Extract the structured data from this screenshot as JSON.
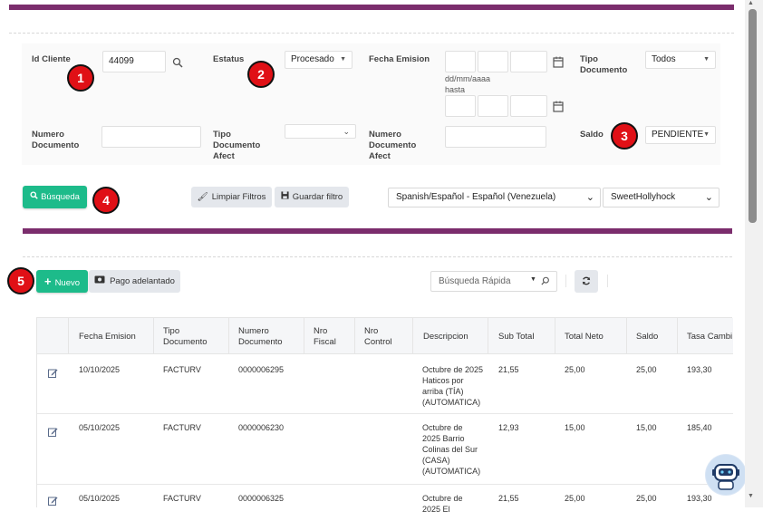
{
  "filters": {
    "id_cliente": {
      "label": "Id Cliente",
      "value": "44099"
    },
    "estatus": {
      "label": "Estatus",
      "value": "Procesado"
    },
    "fecha_emision": {
      "label": "Fecha Emision",
      "format_hint": "dd/mm/aaaa",
      "hasta": "hasta"
    },
    "tipo_documento": {
      "label": "Tipo Documento",
      "value": "Todos"
    },
    "numero_documento": {
      "label": "Numero Documento",
      "value": ""
    },
    "tipo_documento_afect": {
      "label": "Tipo Documento Afect",
      "value": ""
    },
    "numero_documento_afect": {
      "label": "Numero Documento Afect",
      "value": ""
    },
    "saldo": {
      "label": "Saldo",
      "value": "PENDIENTE"
    }
  },
  "badges": [
    "1",
    "2",
    "3",
    "4",
    "5"
  ],
  "actions": {
    "busqueda": "Búsqueda",
    "limpiar": "Limpiar Filtros",
    "guardar": "Guardar filtro",
    "language": "Spanish/Español - Español (Venezuela)",
    "theme": "SweetHollyhock"
  },
  "toolbar": {
    "nuevo": "Nuevo",
    "pago": "Pago adelantado",
    "quick_search_placeholder": "Búsqueda Rápida"
  },
  "table": {
    "headers": [
      "Fecha Emision",
      "Tipo Documento",
      "Numero Documento",
      "Nro Fiscal",
      "Nro Control",
      "Descripcion",
      "Sub Total",
      "Total Neto",
      "Saldo",
      "Tasa Cambi"
    ],
    "rows": [
      {
        "fecha": "10/10/2025",
        "tipo": "FACTURV",
        "numero": "0000006295",
        "fiscal": "",
        "control": "",
        "descripcion": "Octubre de 2025 Haticos por arriba (TÍA) (AUTOMATICA)",
        "sub_total": "21,55",
        "total_neto": "25,00",
        "saldo": "25,00",
        "tasa": "193,30"
      },
      {
        "fecha": "05/10/2025",
        "tipo": "FACTURV",
        "numero": "0000006230",
        "fiscal": "",
        "control": "",
        "descripcion": "Octubre de 2025 Barrio Colinas del Sur (CASA) (AUTOMATICA)",
        "sub_total": "12,93",
        "total_neto": "15,00",
        "saldo": "15,00",
        "tasa": "185,40"
      },
      {
        "fecha": "05/10/2025",
        "tipo": "FACTURV",
        "numero": "0000006325",
        "fiscal": "",
        "control": "",
        "descripcion": "Octubre de 2025 El",
        "sub_total": "21,55",
        "total_neto": "25,00",
        "saldo": "25,00",
        "tasa": "193,30"
      }
    ]
  },
  "colors": {
    "accent_purple": "#7b2d6d",
    "green": "#1dbb8a",
    "badge_red": "#e01016"
  }
}
